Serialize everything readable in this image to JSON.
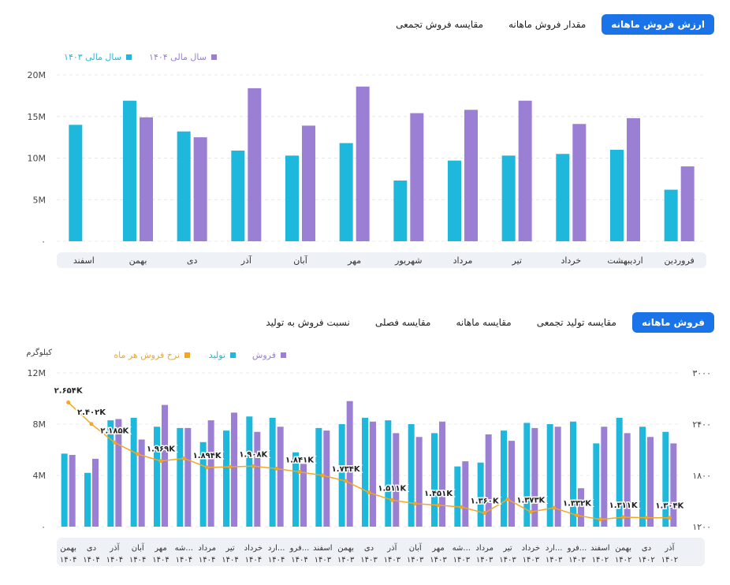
{
  "colors": {
    "accent": "#1a73e8",
    "teal": "#1fb8dd",
    "purple": "#9b7fd4",
    "orange": "#f5a623",
    "axis_band": "#eef1f5"
  },
  "top_tabs": [
    {
      "label": "ارزش فروش ماهانه",
      "active": true
    },
    {
      "label": "مقدار فروش ماهانه",
      "active": false
    },
    {
      "label": "مقایسه فروش تجمعی",
      "active": false
    }
  ],
  "bottom_tabs": [
    {
      "label": "فروش ماهانه",
      "active": true
    },
    {
      "label": "مقایسه تولید تجمعی",
      "active": false
    },
    {
      "label": "مقایسه ماهانه",
      "active": false
    },
    {
      "label": "مقایسه فصلی",
      "active": false
    },
    {
      "label": "نسبت فروش به تولید",
      "active": false
    }
  ],
  "chart_data": [
    {
      "type": "bar",
      "categories": [
        "فروردین",
        "اردیبهشت",
        "خرداد",
        "تیر",
        "مرداد",
        "شهریور",
        "مهر",
        "آبان",
        "آذر",
        "دی",
        "بهمن",
        "اسفند"
      ],
      "series": [
        {
          "name": "سال مالی ۱۴۰۳",
          "color": "#1fb8dd",
          "values": [
            6.2,
            11.0,
            10.5,
            10.3,
            9.7,
            7.3,
            11.8,
            10.3,
            10.9,
            13.2,
            16.9,
            14.0
          ]
        },
        {
          "name": "سال مالی ۱۴۰۴",
          "color": "#9b7fd4",
          "values": [
            9.0,
            14.8,
            14.1,
            16.9,
            15.8,
            15.4,
            18.6,
            13.9,
            18.4,
            12.5,
            14.9,
            null
          ]
        }
      ],
      "yticks": [
        "۰",
        "5M",
        "10M",
        "15M",
        "20M"
      ],
      "ylim": [
        0,
        20
      ],
      "grid": true,
      "legend": "top-left"
    },
    {
      "type": "bar",
      "categories": [
        [
          "آذر",
          "۱۴۰۲"
        ],
        [
          "دی",
          "۱۴۰۲"
        ],
        [
          "بهمن",
          "۱۴۰۲"
        ],
        [
          "اسفند",
          "۱۴۰۲"
        ],
        [
          "فرو...",
          "۱۴۰۳"
        ],
        [
          "ارد...",
          "۱۴۰۳"
        ],
        [
          "خرداد",
          "۱۴۰۳"
        ],
        [
          "تیر",
          "۱۴۰۳"
        ],
        [
          "مرداد",
          "۱۴۰۳"
        ],
        [
          "شه...",
          "۱۴۰۳"
        ],
        [
          "مهر",
          "۱۴۰۳"
        ],
        [
          "آبان",
          "۱۴۰۳"
        ],
        [
          "آذر",
          "۱۴۰۳"
        ],
        [
          "دی",
          "۱۴۰۳"
        ],
        [
          "بهمن",
          "۱۴۰۳"
        ],
        [
          "اسفند",
          "۱۴۰۳"
        ],
        [
          "فرو...",
          "۱۴۰۴"
        ],
        [
          "ارد...",
          "۱۴۰۴"
        ],
        [
          "خرداد",
          "۱۴۰۴"
        ],
        [
          "تیر",
          "۱۴۰۴"
        ],
        [
          "مرداد",
          "۱۴۰۴"
        ],
        [
          "شه...",
          "۱۴۰۴"
        ],
        [
          "مهر",
          "۱۴۰۴"
        ],
        [
          "آبان",
          "۱۴۰۴"
        ],
        [
          "آذر",
          "۱۴۰۴"
        ],
        [
          "دی",
          "۱۴۰۴"
        ],
        [
          "بهمن",
          "۱۴۰۴"
        ]
      ],
      "series": [
        {
          "name": "تولید",
          "color": "#1fb8dd",
          "values": [
            7.4,
            7.8,
            8.5,
            6.5,
            8.2,
            8.0,
            8.1,
            7.5,
            5.0,
            4.7,
            7.3,
            8.0,
            8.3,
            8.5,
            8.0,
            7.7,
            5.8,
            8.5,
            8.6,
            7.5,
            6.6,
            7.7,
            7.8,
            8.5,
            8.3,
            4.2,
            5.7
          ]
        },
        {
          "name": "فروش",
          "color": "#9b7fd4",
          "values": [
            6.5,
            7.0,
            7.3,
            7.8,
            3.0,
            7.8,
            7.7,
            6.7,
            7.2,
            5.1,
            8.2,
            7.0,
            7.3,
            8.2,
            9.8,
            7.5,
            4.9,
            7.8,
            7.4,
            8.9,
            8.3,
            7.7,
            9.5,
            6.8,
            8.4,
            5.3,
            5.6
          ]
        },
        {
          "name": "نرخ فروش هر ماه",
          "color": "#f5a623",
          "axis": "right",
          "values": [
            1304,
            1305,
            1311,
            1285,
            1332,
            1420,
            1373,
            1520,
            1360,
            1430,
            1451,
            1470,
            1511,
            1600,
            1734,
            1800,
            1841,
            1880,
            1908,
            1900,
            1894,
            2000,
            1969,
            2050,
            2185,
            2402,
            2654
          ]
        }
      ],
      "point_labels": [
        {
          "index": 0,
          "text": "۱.۳۰۴K"
        },
        {
          "index": 2,
          "text": "۱.۳۱۱K"
        },
        {
          "index": 4,
          "text": "۱.۳۳۲K"
        },
        {
          "index": 6,
          "text": "۱.۳۷۳K"
        },
        {
          "index": 8,
          "text": "۱.۳۶۰K"
        },
        {
          "index": 10,
          "text": "۱.۴۵۱K"
        },
        {
          "index": 12,
          "text": "۱.۵۱۱K"
        },
        {
          "index": 14,
          "text": "۱.۷۳۴K"
        },
        {
          "index": 16,
          "text": "۱.۸۴۱K"
        },
        {
          "index": 18,
          "text": "۱.۹۰۸K"
        },
        {
          "index": 20,
          "text": "۱.۸۹۴K"
        },
        {
          "index": 22,
          "text": "۱.۹۶۹K"
        },
        {
          "index": 24,
          "text": "۲.۱۸۵K"
        },
        {
          "index": 25,
          "text": "۲.۴۰۲K"
        },
        {
          "index": 26,
          "text": "۲.۶۵۴K"
        }
      ],
      "yticks_left": [
        "۰",
        "4M",
        "8M",
        "12M"
      ],
      "ylim_left": [
        0,
        12
      ],
      "yticks_right": [
        "۱۲۰۰",
        "۱۸۰۰",
        "۲۴۰۰",
        "۳۰۰۰"
      ],
      "ylim_right": [
        1200,
        3000
      ],
      "ylabel_left": "کیلوگرم",
      "grid": true,
      "legend": "top"
    }
  ]
}
